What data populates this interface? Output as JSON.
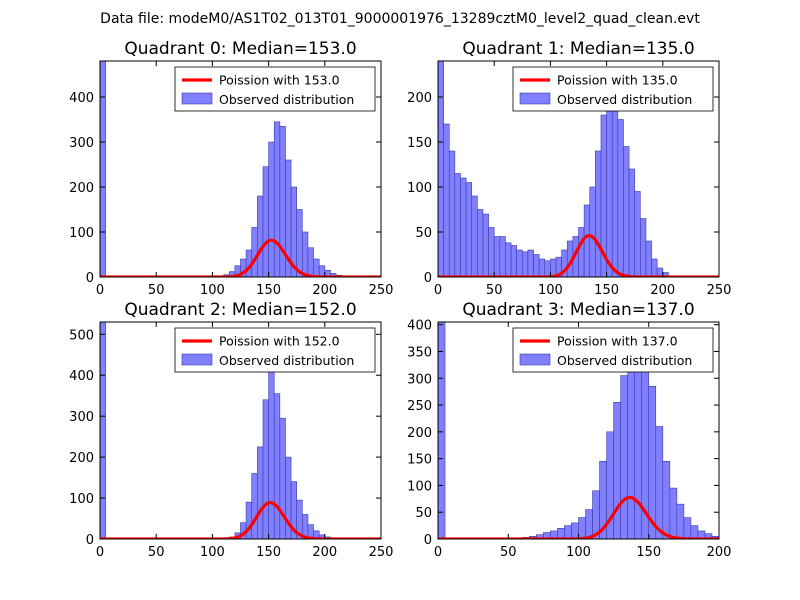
{
  "figure": {
    "suptitle": "Data file: modeM0/AS1T02_013T01_9000001976_13289cztM0_level2_quad_clean.evt"
  },
  "colors": {
    "hist_fill": "#8080ff",
    "hist_edge": "#3b3ba6",
    "poisson_line": "#ff0000",
    "axes": "#000000"
  },
  "chart_data": [
    {
      "type": "bar",
      "title": "Quadrant 0: Median=153.0",
      "xlim": [
        0,
        250
      ],
      "ylim": [
        0,
        480
      ],
      "xticks": [
        0,
        50,
        100,
        150,
        200,
        250
      ],
      "yticks": [
        0,
        100,
        200,
        300,
        400
      ],
      "bin_width": 5,
      "legend": {
        "placement": "top-right",
        "line_label": "Poission with 153.0",
        "bar_label": "Observed distribution"
      },
      "poisson_mean": 153.0,
      "poisson_scale": 2530,
      "bars": [
        [
          0,
          480
        ],
        [
          110,
          5
        ],
        [
          115,
          12
        ],
        [
          120,
          25
        ],
        [
          125,
          40
        ],
        [
          130,
          60
        ],
        [
          135,
          110
        ],
        [
          140,
          180
        ],
        [
          145,
          245
        ],
        [
          150,
          300
        ],
        [
          155,
          345
        ],
        [
          160,
          335
        ],
        [
          165,
          260
        ],
        [
          170,
          200
        ],
        [
          175,
          150
        ],
        [
          180,
          100
        ],
        [
          185,
          65
        ],
        [
          190,
          40
        ],
        [
          195,
          25
        ],
        [
          200,
          15
        ],
        [
          205,
          8
        ],
        [
          210,
          4
        ]
      ]
    },
    {
      "type": "bar",
      "title": "Quadrant 1: Median=135.0",
      "xlim": [
        0,
        250
      ],
      "ylim": [
        0,
        240
      ],
      "xticks": [
        0,
        50,
        100,
        150,
        200,
        250
      ],
      "yticks": [
        0,
        50,
        100,
        150,
        200
      ],
      "bin_width": 5,
      "legend": {
        "placement": "top-right",
        "line_label": "Poission with 135.0",
        "bar_label": "Observed distribution"
      },
      "poisson_mean": 135.0,
      "poisson_scale": 1340,
      "bars": [
        [
          0,
          240
        ],
        [
          5,
          170
        ],
        [
          10,
          140
        ],
        [
          15,
          115
        ],
        [
          20,
          110
        ],
        [
          25,
          105
        ],
        [
          30,
          90
        ],
        [
          35,
          75
        ],
        [
          40,
          70
        ],
        [
          45,
          55
        ],
        [
          50,
          45
        ],
        [
          55,
          45
        ],
        [
          60,
          38
        ],
        [
          65,
          35
        ],
        [
          70,
          30
        ],
        [
          75,
          28
        ],
        [
          80,
          30
        ],
        [
          85,
          25
        ],
        [
          90,
          20
        ],
        [
          95,
          18
        ],
        [
          100,
          20
        ],
        [
          105,
          22
        ],
        [
          110,
          30
        ],
        [
          115,
          40
        ],
        [
          120,
          45
        ],
        [
          125,
          55
        ],
        [
          130,
          80
        ],
        [
          135,
          100
        ],
        [
          140,
          140
        ],
        [
          145,
          180
        ],
        [
          150,
          205
        ],
        [
          155,
          215
        ],
        [
          160,
          175
        ],
        [
          165,
          145
        ],
        [
          170,
          120
        ],
        [
          175,
          95
        ],
        [
          180,
          65
        ],
        [
          185,
          40
        ],
        [
          190,
          20
        ],
        [
          195,
          10
        ],
        [
          200,
          5
        ]
      ]
    },
    {
      "type": "bar",
      "title": "Quadrant 2: Median=152.0",
      "xlim": [
        0,
        250
      ],
      "ylim": [
        0,
        530
      ],
      "xticks": [
        0,
        50,
        100,
        150,
        200,
        250
      ],
      "yticks": [
        0,
        100,
        200,
        300,
        400,
        500
      ],
      "bin_width": 5,
      "legend": {
        "placement": "top-right",
        "line_label": "Poission with 152.0",
        "bar_label": "Observed distribution"
      },
      "poisson_mean": 152.0,
      "poisson_scale": 2750,
      "bars": [
        [
          0,
          530
        ],
        [
          115,
          5
        ],
        [
          120,
          15
        ],
        [
          125,
          40
        ],
        [
          130,
          90
        ],
        [
          135,
          160
        ],
        [
          140,
          225
        ],
        [
          145,
          340
        ],
        [
          150,
          420
        ],
        [
          155,
          355
        ],
        [
          160,
          295
        ],
        [
          165,
          200
        ],
        [
          170,
          140
        ],
        [
          175,
          95
        ],
        [
          180,
          60
        ],
        [
          185,
          35
        ],
        [
          190,
          20
        ],
        [
          195,
          10
        ],
        [
          200,
          5
        ],
        [
          205,
          3
        ],
        [
          210,
          2
        ],
        [
          215,
          1
        ],
        [
          220,
          1
        ]
      ]
    },
    {
      "type": "bar",
      "title": "Quadrant 3: Median=137.0",
      "xlim": [
        0,
        200
      ],
      "ylim": [
        0,
        405
      ],
      "xticks": [
        0,
        50,
        100,
        150,
        200
      ],
      "yticks": [
        0,
        50,
        100,
        150,
        200,
        250,
        300,
        350,
        400
      ],
      "bin_width": 5,
      "legend": {
        "placement": "top-right",
        "line_label": "Poission with 137.0",
        "bar_label": "Observed distribution"
      },
      "poisson_mean": 137.0,
      "poisson_scale": 2275,
      "bars": [
        [
          0,
          405
        ],
        [
          60,
          3
        ],
        [
          65,
          5
        ],
        [
          70,
          8
        ],
        [
          75,
          12
        ],
        [
          80,
          15
        ],
        [
          85,
          20
        ],
        [
          90,
          25
        ],
        [
          95,
          30
        ],
        [
          100,
          40
        ],
        [
          105,
          55
        ],
        [
          110,
          90
        ],
        [
          115,
          145
        ],
        [
          120,
          200
        ],
        [
          125,
          255
        ],
        [
          130,
          305
        ],
        [
          135,
          340
        ],
        [
          140,
          370
        ],
        [
          145,
          335
        ],
        [
          150,
          285
        ],
        [
          155,
          210
        ],
        [
          160,
          145
        ],
        [
          165,
          95
        ],
        [
          170,
          65
        ],
        [
          175,
          40
        ],
        [
          180,
          25
        ],
        [
          185,
          15
        ],
        [
          190,
          10
        ],
        [
          195,
          5
        ]
      ]
    }
  ]
}
